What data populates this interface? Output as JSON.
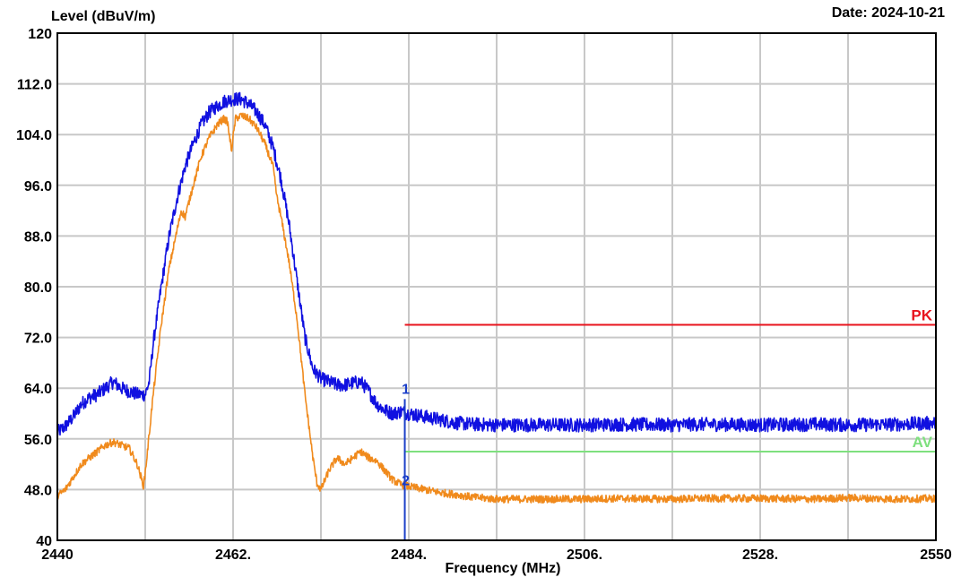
{
  "header": {
    "ylabel": "Level (dBuV/m)",
    "date": "Date: 2024-10-21"
  },
  "chart_data": {
    "type": "line",
    "xlabel": "Frequency (MHz)",
    "ylabel": "Level (dBuV/m)",
    "xlim": [
      2440,
      2550
    ],
    "ylim": [
      40,
      120
    ],
    "grid": true,
    "x_ticks": [
      2440,
      2451,
      2462,
      2473,
      2484,
      2495,
      2506,
      2517,
      2528,
      2539,
      2550
    ],
    "x_tick_labels": [
      "2440",
      "",
      "2462.",
      "",
      "2484.",
      "",
      "2506.",
      "",
      "2528.",
      "",
      "2550"
    ],
    "y_ticks": [
      40,
      48,
      56,
      64,
      72,
      80,
      88,
      96,
      104,
      112,
      120
    ],
    "y_tick_labels": [
      "40",
      "48.0",
      "56.0",
      "64.0",
      "72.0",
      "80.0",
      "88.0",
      "96.0",
      "104.0",
      "112.0",
      "120"
    ],
    "limits": [
      {
        "name": "PK",
        "value": 74,
        "x_start": 2483.5,
        "x_end": 2550,
        "color": "#e8141e"
      },
      {
        "name": "AV",
        "value": 54,
        "x_start": 2483.5,
        "x_end": 2550,
        "color": "#7ee07e"
      }
    ],
    "markers": [
      {
        "label": "1",
        "x": 2483.5,
        "y": 60.3
      },
      {
        "label": "2",
        "x": 2483.5,
        "y": 48.8
      }
    ],
    "marker_color": "#1a3ec8",
    "series": [
      {
        "color": "#1010e0",
        "x": [
          2440,
          2441,
          2442,
          2443,
          2444,
          2445,
          2446,
          2447,
          2448,
          2449,
          2450,
          2451,
          2451.5,
          2452,
          2453,
          2454,
          2455,
          2456,
          2457,
          2458,
          2459,
          2460,
          2461,
          2462,
          2463,
          2464,
          2465,
          2466,
          2467,
          2468,
          2469,
          2470,
          2471,
          2472,
          2473,
          2474,
          2475,
          2476,
          2477,
          2478,
          2479,
          2480,
          2481,
          2482,
          2483,
          2484,
          2486,
          2488,
          2490,
          2492,
          2495,
          2500,
          2506,
          2510,
          2517,
          2520,
          2528,
          2535,
          2539,
          2545,
          2550
        ],
        "values": [
          57,
          58,
          59.5,
          61.5,
          62.5,
          63,
          64,
          65,
          64,
          63.5,
          63,
          63,
          65,
          71,
          80,
          88,
          94,
          99,
          102.5,
          105.5,
          107.5,
          108.5,
          109.3,
          109.6,
          109.6,
          108.8,
          107.5,
          105.5,
          102,
          97,
          90,
          81,
          72,
          67,
          65.5,
          65,
          64.5,
          64.5,
          64.8,
          65,
          63.5,
          61.5,
          60.5,
          60,
          60.3,
          60,
          59.5,
          59,
          58.5,
          58.3,
          58.2,
          58.2,
          58.2,
          58.3,
          58.2,
          58.3,
          58.2,
          58.3,
          58.2,
          58.3,
          58.5
        ]
      },
      {
        "color": "#f08a1c",
        "x": [
          2440,
          2441,
          2442,
          2443,
          2444,
          2445,
          2446,
          2447,
          2448,
          2449,
          2450,
          2450.8,
          2451.2,
          2452,
          2453,
          2454,
          2455,
          2455.5,
          2456,
          2457,
          2458,
          2459,
          2460,
          2460.8,
          2461.3,
          2461.8,
          2462.3,
          2463,
          2464,
          2465,
          2466,
          2467,
          2467.5,
          2468,
          2469,
          2470,
          2471,
          2472,
          2472.5,
          2473,
          2474,
          2475,
          2476,
          2477,
          2478,
          2479,
          2480,
          2481,
          2482,
          2483,
          2484,
          2486,
          2488,
          2490,
          2492,
          2495,
          2500,
          2506,
          2510,
          2517,
          2520,
          2528,
          2535,
          2539,
          2545,
          2550
        ],
        "values": [
          47,
          48,
          50,
          52,
          53,
          54,
          55,
          55.5,
          55,
          54.5,
          52,
          48.5,
          53,
          63,
          74,
          83,
          89,
          92,
          91,
          96,
          100.5,
          103.5,
          105.5,
          106.5,
          106,
          101.5,
          106.5,
          107,
          106.5,
          105,
          102.5,
          99,
          94,
          91,
          84,
          75,
          63,
          53,
          49,
          48,
          51,
          53,
          52,
          53,
          54,
          53,
          52.5,
          51,
          49.5,
          48.8,
          48.5,
          48,
          47.5,
          47.2,
          46.8,
          46.5,
          46.5,
          46.5,
          46.6,
          46.5,
          46.6,
          46.6,
          46.5,
          46.7,
          46.5,
          46.6
        ]
      }
    ]
  }
}
